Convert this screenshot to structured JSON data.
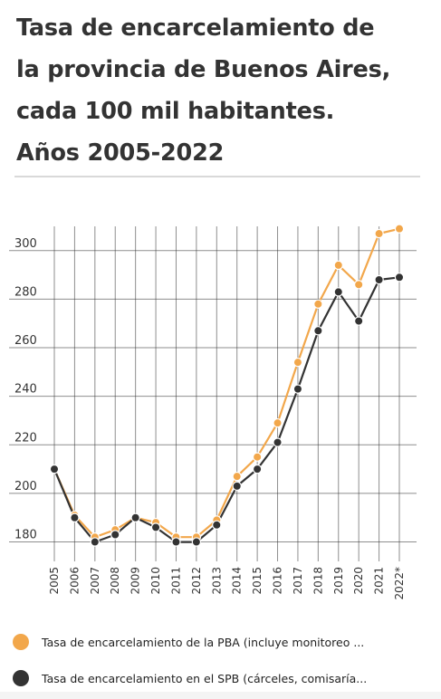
{
  "title_lines": [
    "Tasa de encarcelamiento de",
    "la provincia de Buenos Aires,",
    "cada 100 mil habitantes.",
    "Años 2005-2022"
  ],
  "colors": {
    "series_pba": "#f2a74b",
    "series_spb": "#333333",
    "grid": "#333333"
  },
  "legend": [
    {
      "label": "Tasa de encarcelamiento de la PBA (incluye monitoreo ...",
      "color": "#f2a74b"
    },
    {
      "label": "Tasa de encarcelamiento en el SPB (cárceles, comisaría...",
      "color": "#333333"
    }
  ],
  "chart_data": {
    "type": "line",
    "categories": [
      "2005",
      "2006",
      "2007",
      "2008",
      "2009",
      "2010",
      "2011",
      "2012",
      "2013",
      "2014",
      "2015",
      "2016",
      "2017",
      "2018",
      "2019",
      "2020",
      "2021",
      "2022*"
    ],
    "ylim": [
      172,
      310
    ],
    "yticks": [
      180,
      200,
      220,
      240,
      260,
      280,
      300
    ],
    "grid": true,
    "legend_position": "bottom",
    "series": [
      {
        "name": "Tasa de encarcelamiento de la PBA (incluye monitoreo ...",
        "color": "#f2a74b",
        "values": [
          210,
          191,
          182,
          185,
          190,
          188,
          182,
          182,
          189,
          207,
          215,
          229,
          254,
          278,
          294,
          286,
          307,
          309
        ]
      },
      {
        "name": "Tasa de encarcelamiento en el SPB (cárceles, comisaría...",
        "color": "#333333",
        "values": [
          210,
          190,
          180,
          183,
          190,
          186,
          180,
          180,
          187,
          203,
          210,
          221,
          243,
          267,
          283,
          271,
          288,
          289
        ]
      }
    ]
  }
}
